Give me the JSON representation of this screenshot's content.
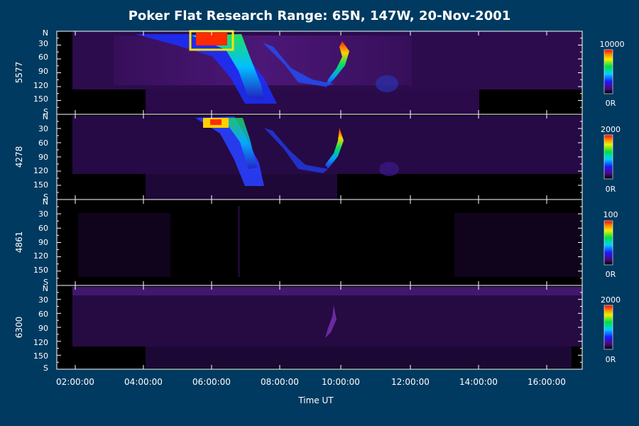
{
  "title": "Poker Flat Research Range: 65N, 147W, 20-Nov-2001",
  "colors": {
    "background": "#003a60",
    "frame": "#ffffff",
    "panel_background": "#000000",
    "keogram_base": "#2a0a4a"
  },
  "chart_data": [
    {
      "type": "heatmap",
      "ylabel": "5577",
      "y_tick_labels": [
        "N",
        "30",
        "60",
        "90",
        "120",
        "150",
        "S"
      ],
      "colorbar": {
        "max_label": "10000",
        "min_label": "0R"
      },
      "xlabel": "",
      "x_tick_labels": []
    },
    {
      "type": "heatmap",
      "ylabel": "4278",
      "y_tick_labels": [
        "N",
        "30",
        "60",
        "90",
        "120",
        "150",
        "S"
      ],
      "colorbar": {
        "max_label": "2000",
        "min_label": "0R"
      },
      "xlabel": "",
      "x_tick_labels": []
    },
    {
      "type": "heatmap",
      "ylabel": "4861",
      "y_tick_labels": [
        "N",
        "30",
        "60",
        "90",
        "120",
        "150",
        "S"
      ],
      "colorbar": {
        "max_label": "100",
        "min_label": "0R"
      },
      "xlabel": "",
      "x_tick_labels": []
    },
    {
      "type": "heatmap",
      "ylabel": "6300",
      "y_tick_labels": [
        "N",
        "30",
        "60",
        "90",
        "120",
        "150",
        "S"
      ],
      "colorbar": {
        "max_label": "2000",
        "min_label": "0R"
      },
      "xlabel": "Time UT",
      "x_tick_labels": [
        "02:00:00",
        "04:00:00",
        "06:00:00",
        "08:00:00",
        "10:00:00",
        "12:00:00",
        "14:00:00",
        "16:00:00"
      ]
    }
  ]
}
